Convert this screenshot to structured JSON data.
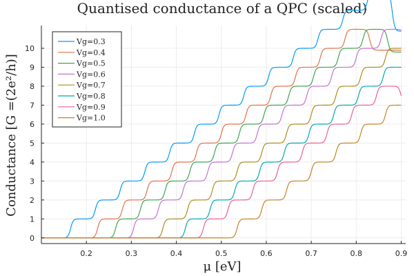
{
  "chart_data": {
    "type": "line",
    "title": "Quantised conductance of a QPC (scaled)",
    "xlabel": "μ [eV]",
    "ylabel": "Conductance  [G   =(2e²/h)]",
    "xlim": [
      0.1,
      0.9
    ],
    "ylim": [
      -0.3,
      11.2
    ],
    "xticks": [
      0.2,
      0.3,
      0.4,
      0.5,
      0.6,
      0.7,
      0.8,
      0.9
    ],
    "xtick_labels": [
      "0.2",
      "0.3",
      "0.4",
      "0.5",
      "0.6",
      "0.7",
      "0.8",
      "0.9"
    ],
    "yticks": [
      0,
      1,
      2,
      3,
      4,
      5,
      6,
      7,
      8,
      9,
      10
    ],
    "ytick_labels": [
      "0",
      "1",
      "2",
      "3",
      "4",
      "5",
      "6",
      "7",
      "8",
      "9",
      "10"
    ],
    "grid": true,
    "legend_position": "top-left",
    "series": [
      {
        "name": "Vg=0.3",
        "color": "#009AFA",
        "onsets": [
          0.165,
          0.22,
          0.275,
          0.33,
          0.385,
          0.44,
          0.495,
          0.55,
          0.605,
          0.66,
          0.715,
          0.77,
          0.825,
          0.88
        ],
        "final_value": 10.9
      },
      {
        "name": "Vg=0.4",
        "color": "#E36F47",
        "onsets": [
          0.225,
          0.28,
          0.335,
          0.39,
          0.445,
          0.5,
          0.555,
          0.61,
          0.665,
          0.72,
          0.775,
          0.83
        ],
        "final_value": 9.9
      },
      {
        "name": "Vg=0.5",
        "color": "#3EA44E",
        "onsets": [
          0.265,
          0.32,
          0.375,
          0.43,
          0.485,
          0.54,
          0.595,
          0.65,
          0.705,
          0.76,
          0.815,
          0.87
        ],
        "final_value": 9.8
      },
      {
        "name": "Vg=0.6",
        "color": "#C271D2",
        "onsets": [
          0.305,
          0.36,
          0.415,
          0.47,
          0.525,
          0.58,
          0.635,
          0.69,
          0.745,
          0.8,
          0.855,
          0.91
        ],
        "final_value": 9.0
      },
      {
        "name": "Vg=0.7",
        "color": "#AC8D18",
        "onsets": [
          0.37,
          0.425,
          0.48,
          0.535,
          0.59,
          0.645,
          0.7,
          0.755,
          0.81,
          0.865,
          0.92
        ],
        "final_value": 7.9
      },
      {
        "name": "Vg=0.8",
        "color": "#00A9AD",
        "onsets": [
          0.42,
          0.475,
          0.53,
          0.585,
          0.64,
          0.695,
          0.75,
          0.805,
          0.86,
          0.915
        ],
        "final_value": 7.8
      },
      {
        "name": "Vg=0.9",
        "color": "#ED5E93",
        "onsets": [
          0.46,
          0.515,
          0.57,
          0.625,
          0.68,
          0.735,
          0.79,
          0.845,
          0.9
        ],
        "final_value": 7.0
      },
      {
        "name": "Vg=1.0",
        "color": "#C68225",
        "onsets": [
          0.535,
          0.59,
          0.645,
          0.7,
          0.755,
          0.81,
          0.865,
          0.92
        ],
        "final_value": 5.9
      }
    ]
  }
}
